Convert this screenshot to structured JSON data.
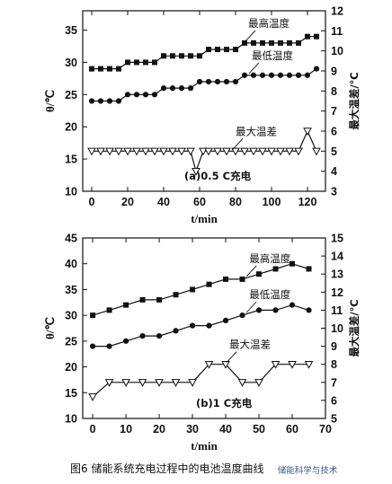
{
  "caption": "图6    储能系统充电过程中的电池温度曲线",
  "watermark": "储能科学与技术",
  "chart_data": [
    {
      "type": "line",
      "panel_label": "(a)0.5 C充电",
      "xlabel": "t/min",
      "ylabel_left": "θ/℃",
      "ylabel_right": "最大温差/℃",
      "xlim": [
        -5,
        130
      ],
      "ylim_left": [
        10,
        38
      ],
      "ylim_right": [
        3,
        12
      ],
      "xticks": [
        0,
        20,
        40,
        60,
        80,
        100,
        120
      ],
      "yticks_left": [
        10,
        15,
        20,
        25,
        30,
        35
      ],
      "yticks_right": [
        3,
        4,
        5,
        6,
        7,
        8,
        9,
        10,
        11,
        12
      ],
      "grid": false,
      "series": [
        {
          "name": "最高温度",
          "axis": "left",
          "marker": "square-filled",
          "x": [
            0,
            5,
            10,
            15,
            20,
            25,
            30,
            35,
            40,
            45,
            50,
            55,
            60,
            65,
            70,
            75,
            80,
            85,
            90,
            95,
            100,
            105,
            110,
            115,
            120,
            125
          ],
          "y": [
            29,
            29,
            29,
            29,
            30,
            30,
            30,
            30,
            31,
            31,
            31,
            31,
            31,
            32,
            32,
            32,
            32,
            33,
            33,
            33,
            33,
            33,
            33,
            33,
            34,
            34
          ]
        },
        {
          "name": "最低温度",
          "axis": "left",
          "marker": "circle-filled",
          "x": [
            0,
            5,
            10,
            15,
            20,
            25,
            30,
            35,
            40,
            45,
            50,
            55,
            60,
            65,
            70,
            75,
            80,
            85,
            90,
            95,
            100,
            105,
            110,
            115,
            120,
            125
          ],
          "y": [
            24,
            24,
            24,
            24,
            25,
            25,
            25,
            25,
            26,
            26,
            26,
            26,
            27,
            27,
            27,
            27,
            27,
            28,
            28,
            28,
            28,
            28,
            28,
            28,
            28,
            29
          ]
        },
        {
          "name": "最大温差",
          "axis": "right",
          "marker": "triangle-down-open",
          "x": [
            0,
            5,
            10,
            15,
            20,
            25,
            30,
            35,
            40,
            45,
            50,
            55,
            58,
            62,
            65,
            70,
            75,
            80,
            85,
            90,
            95,
            100,
            105,
            110,
            115,
            120,
            125
          ],
          "y": [
            5,
            5,
            5,
            5,
            5,
            5,
            5,
            5,
            5,
            5,
            5,
            5,
            4,
            5,
            5,
            5,
            5,
            5,
            5,
            5,
            5,
            5,
            5,
            5,
            5,
            6,
            5
          ]
        }
      ],
      "annotations": [
        {
          "text": "最高温度",
          "series": 0,
          "at_x": 85
        },
        {
          "text": "最低温度",
          "series": 1,
          "at_x": 87
        },
        {
          "text": "最大温差",
          "series": 2,
          "at_x": 78
        }
      ]
    },
    {
      "type": "line",
      "panel_label": "(b)1 C充电",
      "xlabel": "t/min",
      "ylabel_left": "θ/℃",
      "ylabel_right": "最大温差/℃",
      "xlim": [
        -3,
        70
      ],
      "ylim_left": [
        10,
        45
      ],
      "ylim_right": [
        5,
        15
      ],
      "xticks": [
        0,
        10,
        20,
        30,
        40,
        50,
        60,
        70
      ],
      "yticks_left": [
        10,
        15,
        20,
        25,
        30,
        35,
        40,
        45
      ],
      "yticks_right": [
        5,
        6,
        7,
        8,
        9,
        10,
        11,
        12,
        13,
        14,
        15
      ],
      "grid": false,
      "series": [
        {
          "name": "最高温度",
          "axis": "left",
          "marker": "square-filled",
          "x": [
            0,
            5,
            10,
            15,
            20,
            25,
            30,
            35,
            40,
            45,
            50,
            55,
            60,
            65
          ],
          "y": [
            30,
            31,
            32,
            33,
            33,
            34,
            35,
            36,
            37,
            37,
            38,
            39,
            40,
            39
          ]
        },
        {
          "name": "最低温度",
          "axis": "left",
          "marker": "circle-filled",
          "x": [
            0,
            5,
            10,
            15,
            20,
            25,
            30,
            35,
            40,
            45,
            50,
            55,
            60,
            65
          ],
          "y": [
            24,
            24,
            25,
            26,
            26,
            27,
            28,
            28,
            29,
            30,
            31,
            31,
            32,
            31
          ]
        },
        {
          "name": "最大温差",
          "axis": "right",
          "marker": "triangle-down-open",
          "x": [
            0,
            5,
            10,
            15,
            20,
            25,
            30,
            35,
            40,
            45,
            50,
            55,
            60,
            65
          ],
          "y": [
            6.2,
            7,
            7,
            7,
            7,
            7,
            7,
            8,
            8,
            7,
            7,
            8,
            8,
            8
          ]
        }
      ],
      "annotations": [
        {
          "text": "最高温度",
          "series": 0,
          "at_x": 46
        },
        {
          "text": "最低温度",
          "series": 1,
          "at_x": 46
        },
        {
          "text": "最大温差",
          "series": 2,
          "at_x": 40
        }
      ]
    }
  ]
}
